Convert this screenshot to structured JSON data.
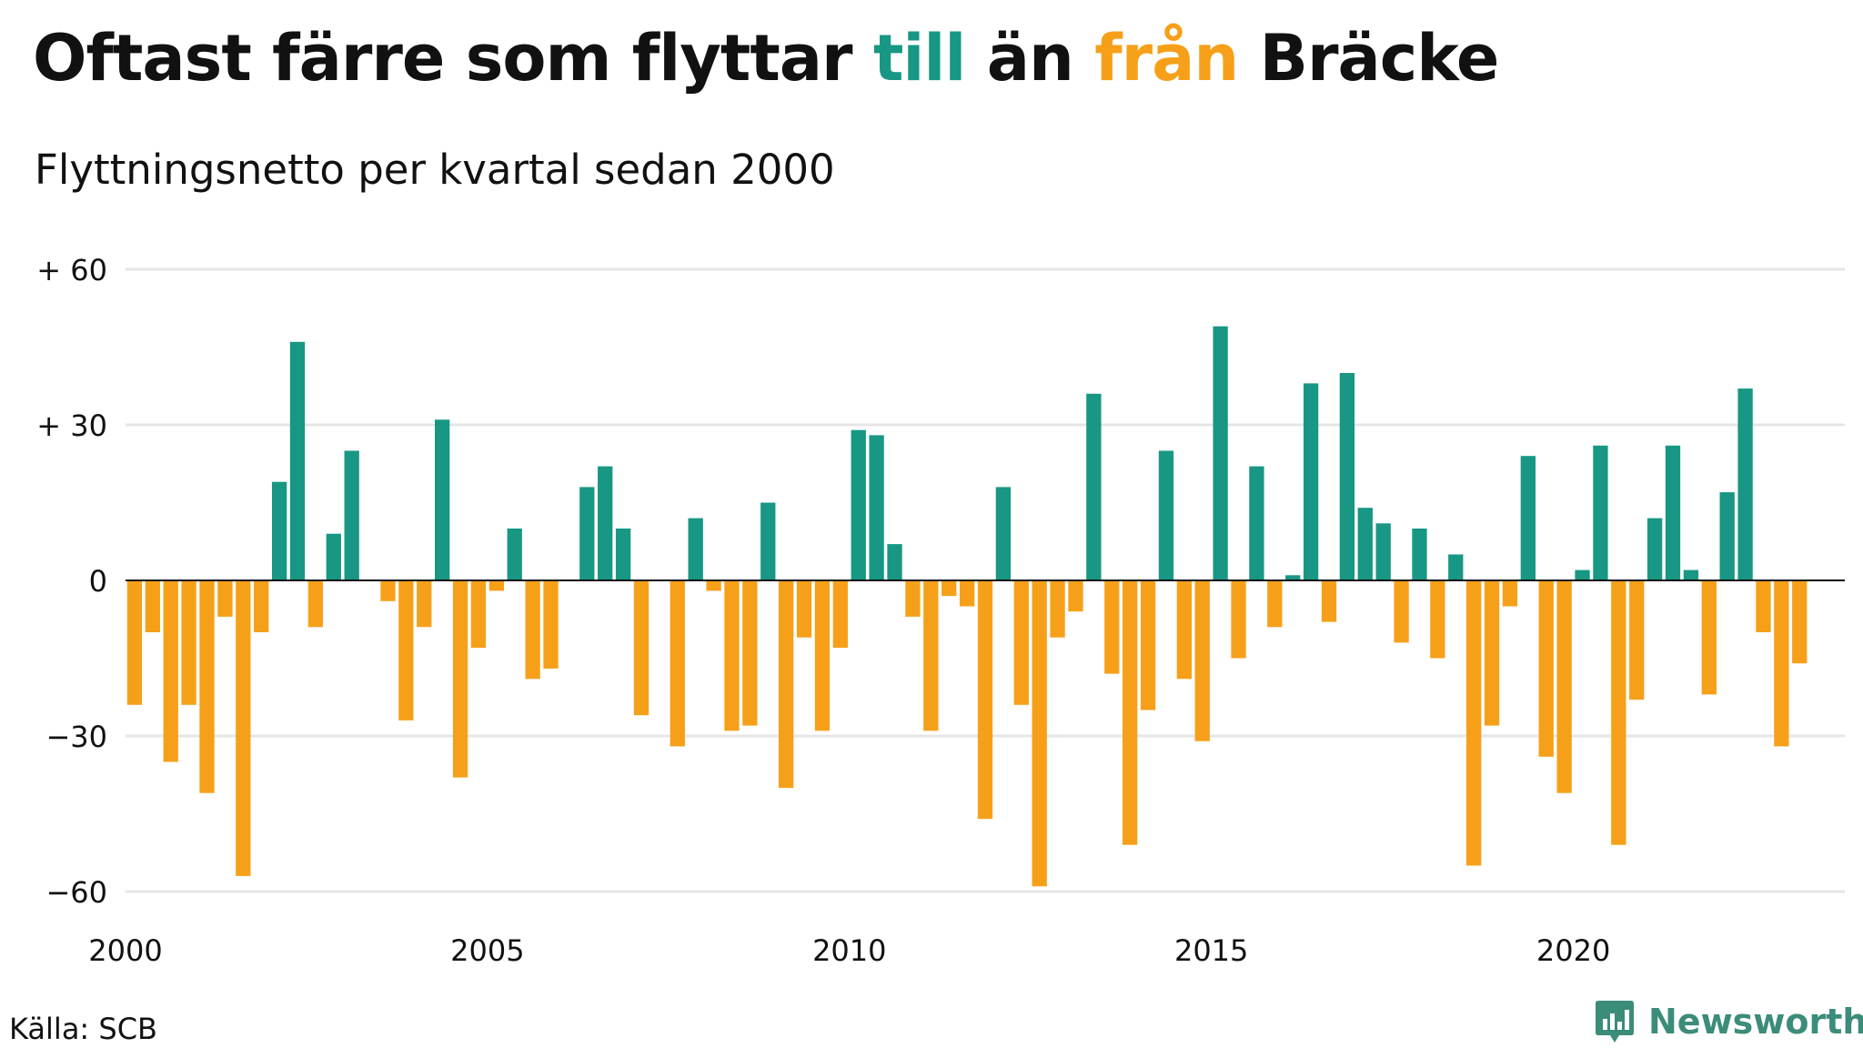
{
  "title": {
    "part1": "Oftast färre som flyttar ",
    "part2": "till",
    "part3": " än ",
    "part4": "från",
    "part5": " Bräcke"
  },
  "subtitle": "Flyttningsnetto per kvartal sedan 2000",
  "source": "Källa: SCB",
  "brand": "Newsworthy",
  "colors": {
    "positive": "#179784",
    "negative": "#f6a01a",
    "text": "#111111",
    "grid": "#e6e6e6",
    "brand": "#3c8c7a"
  },
  "chart_data": {
    "type": "bar",
    "title": "Oftast färre som flyttar till än från Bräcke",
    "subtitle": "Flyttningsnetto per kvartal sedan 2000",
    "x_start": 2000,
    "x_interval": "quarter",
    "xlim": [
      2000,
      2023.75
    ],
    "ylim": [
      -63,
      63
    ],
    "y_ticks": [
      60,
      30,
      0,
      -30,
      -60
    ],
    "y_tick_labels": [
      "+ 60",
      "+ 30",
      "0",
      "−30",
      "−60"
    ],
    "x_ticks": [
      2000,
      2005,
      2010,
      2015,
      2020
    ],
    "x_tick_labels": [
      "2000",
      "2005",
      "2010",
      "2015",
      "2020"
    ],
    "grid": true,
    "values": [
      -24,
      -10,
      -35,
      -24,
      -41,
      -7,
      -57,
      -10,
      19,
      46,
      -9,
      9,
      25,
      0,
      -4,
      -27,
      -9,
      31,
      -38,
      -13,
      -2,
      10,
      -19,
      -17,
      0,
      18,
      22,
      10,
      -26,
      0,
      -32,
      12,
      -2,
      -29,
      -28,
      15,
      -40,
      -11,
      -29,
      -13,
      29,
      28,
      7,
      -7,
      -29,
      -3,
      -5,
      -46,
      18,
      -24,
      -59,
      -11,
      -6,
      36,
      -18,
      -51,
      -25,
      25,
      -19,
      -31,
      49,
      -15,
      22,
      -9,
      1,
      38,
      -8,
      40,
      14,
      11,
      -12,
      10,
      -15,
      5,
      -55,
      -28,
      -5,
      24,
      -34,
      -41,
      2,
      26,
      -51,
      -23,
      12,
      26,
      2,
      -22,
      17,
      37,
      -10,
      -32,
      -16
    ]
  }
}
